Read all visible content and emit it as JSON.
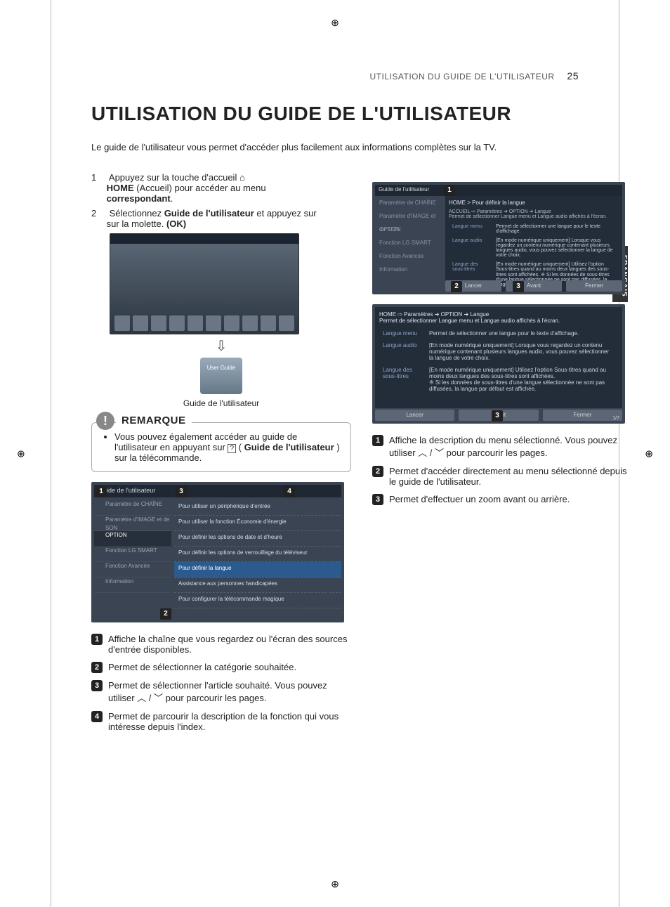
{
  "header": {
    "section": "UTILISATION DU GUIDE DE L'UTILISATEUR",
    "page_number": "25"
  },
  "title": "UTILISATION DU GUIDE DE L'UTILISATEUR",
  "intro": "Le guide de l'utilisateur vous permet d'accéder plus facilement aux informations complètes sur la TV.",
  "lang_tab": "FRANÇAIS",
  "steps": {
    "s1_n": "1",
    "s1_a": "Appuyez sur la touche d'accueil ",
    "s1_home": "HOME",
    "s1_b": " (Accueil) pour accéder au menu ",
    "s1_c": "correspondant",
    "s2_n": "2",
    "s2_a": "Sélectionnez ",
    "s2_b": "Guide de l'utilisateur",
    "s2_c": " et appuyez sur ",
    "s2_d": "(OK)",
    "s2_e": " sur la molette."
  },
  "guide_tile": {
    "text": "User\nGuide",
    "label": "Guide de l'utilisateur"
  },
  "note": {
    "heading": "REMARQUE",
    "body_a": "Vous pouvez également accéder au guide de l'utilisateur en appuyant sur ",
    "icon": "ⓘ",
    "body_b": " (",
    "bold": "Guide de l'utilisateur",
    "body_c": ") sur la télécommande."
  },
  "tv1": {
    "titlebar": "Guide de l'utilisateur",
    "side": [
      "Paramètre de CHAÎNE",
      "Paramètre d'IMAGE et de SON",
      "OPTION",
      "Fonction LG SMART",
      "Fonction Avancée",
      "Information"
    ],
    "side_sel_index": 2,
    "main": [
      "Pour utiliser un périphérique d'entrée",
      "Pour utiliser la fonction Économie d'énergie",
      "Pour définir les options de date et d'heure",
      "Pour définir les options de verrouillage du téléviseur",
      "Pour définir la langue",
      "Assistance aux personnes handicapées",
      "Pour configurer la télécommande magique"
    ],
    "main_sel_index": 4,
    "badges": {
      "b1": "1",
      "b2": "2",
      "b3": "3",
      "b4": "4"
    }
  },
  "legend_left": [
    {
      "n": "1",
      "t": "Affiche la chaîne que vous regardez ou l'écran des sources d'entrée disponibles."
    },
    {
      "n": "2",
      "t": "Permet de sélectionner la catégorie souhaitée."
    },
    {
      "n": "3",
      "t": "Permet de sélectionner l'article souhaité. Vous pouvez utiliser  ︿ / ﹀  pour parcourir les pages."
    },
    {
      "n": "4",
      "t": "Permet de parcourir la description de la fonction qui vous intéresse depuis l'index."
    }
  ],
  "tv2": {
    "title": "Guide de l'utilisateur",
    "side": [
      "Paramètre de CHAÎNE",
      "Paramètre d'IMAGE et de SON",
      "OPTION",
      "Fonction LG SMART",
      "Fonction Avancée",
      "Information"
    ],
    "crumb": "HOME > Pour définir la langue",
    "subcrumb": "ACCUEIL ⇨ Paramètres ➜ OPTION ➜ Langue\nPermet de sélectionner Langue menu et Langue audio affichés à l'écran.",
    "rows": [
      [
        "Langue menu",
        "Permet de sélectionner une langue pour le texte d'affichage."
      ],
      [
        "Langue audio",
        "[En mode numérique uniquement] Lorsque vous regardez un contenu numérique contenant plusieurs langues audio, vous pouvez sélectionner la langue de votre choix."
      ],
      [
        "Langue des sous-titres",
        "[En mode numérique uniquement] Utilisez l'option Sous-titres quand au moins deux langues des sous-titres sont affichées.\n※ Si les données de sous-titres d'une langue sélectionnée ne sont pas diffusées, la langue par défaut est affichée."
      ]
    ],
    "buttons": [
      "Lancer",
      "Avant",
      "Fermer"
    ],
    "badges": {
      "b1": "1",
      "b2": "2",
      "b3": "3"
    }
  },
  "tv3": {
    "crumb": "HOME ⇨ Paramètres ➜ OPTION ➜ Langue\nPermet de sélectionner Langue menu et Langue audio affichés à l'écran.",
    "rows": [
      [
        "Langue menu",
        "Permet de sélectionner une langue pour le texte d'affichage."
      ],
      [
        "Langue audio",
        "[En mode numérique uniquement] Lorsque vous regardez un contenu numérique contenant plusieurs langues audio, vous pouvez sélectionner la langue de votre choix."
      ],
      [
        "Langue des sous-titres",
        "[En mode numérique uniquement] Utilisez l'option Sous-titres quand au moins deux langues des sous-titres sont affichées.\n※ Si les données de sous-titres d'une langue sélectionnée ne sont pas diffusées, la langue par défaut est affichée."
      ]
    ],
    "buttons": [
      "Lancer",
      "Avant",
      "Fermer"
    ],
    "page": "1/7",
    "badge": "3"
  },
  "legend_right": [
    {
      "n": "1",
      "t": "Affiche la description du menu sélectionné. Vous pouvez utiliser  ︿ / ﹀  pour parcourir les pages."
    },
    {
      "n": "2",
      "t": "Permet d'accéder directement au menu sélectionné depuis le guide de l'utilisateur."
    },
    {
      "n": "3",
      "t": "Permet d'effectuer un zoom avant ou arrière."
    }
  ],
  "colors": {
    "page_bg": "#ffffff",
    "tv_bg": "#3a4452",
    "tv_panel": "#232c39",
    "accent": "#2a5a8e",
    "badge": "#222222",
    "gray": "#888888"
  }
}
